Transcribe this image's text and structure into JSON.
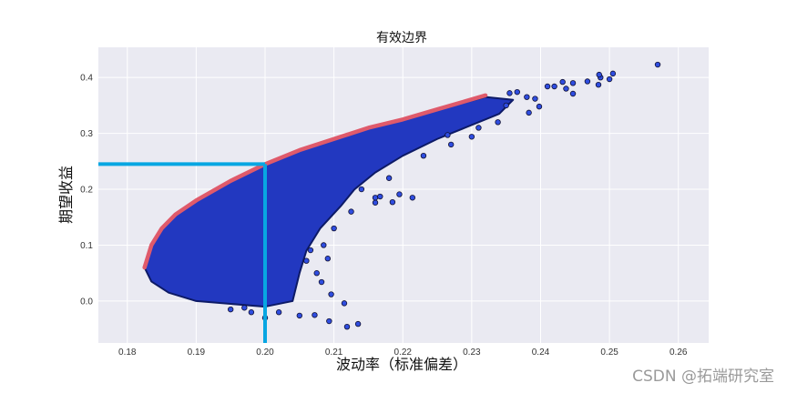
{
  "chart_data": {
    "type": "scatter",
    "title": "有效边界",
    "xlabel": "波动率（标准偏差）",
    "ylabel": "期望收益",
    "xlim": [
      0.1758,
      0.2644
    ],
    "ylim": [
      -0.075,
      0.454
    ],
    "xticks": [
      "0.18",
      "0.19",
      "0.20",
      "0.21",
      "0.22",
      "0.23",
      "0.24",
      "0.25",
      "0.26"
    ],
    "yticks": [
      "0.0",
      "0.1",
      "0.2",
      "0.3",
      "0.4"
    ],
    "grid": true,
    "colors": {
      "background": "#eaeaf2",
      "points": "#2f4de0",
      "point_edge": "#111133",
      "dense": "#2238c0",
      "frontier": "#df5a6b",
      "guide": "#08a6e2"
    },
    "dense_region": [
      [
        0.1825,
        0.06
      ],
      [
        0.1835,
        0.1
      ],
      [
        0.185,
        0.13
      ],
      [
        0.187,
        0.155
      ],
      [
        0.19,
        0.18
      ],
      [
        0.195,
        0.215
      ],
      [
        0.2,
        0.245
      ],
      [
        0.205,
        0.27
      ],
      [
        0.21,
        0.29
      ],
      [
        0.215,
        0.31
      ],
      [
        0.22,
        0.325
      ],
      [
        0.225,
        0.343
      ],
      [
        0.232,
        0.365
      ],
      [
        0.236,
        0.36
      ],
      [
        0.234,
        0.335
      ],
      [
        0.229,
        0.31
      ],
      [
        0.225,
        0.29
      ],
      [
        0.22,
        0.26
      ],
      [
        0.216,
        0.23
      ],
      [
        0.213,
        0.2
      ],
      [
        0.211,
        0.17
      ],
      [
        0.208,
        0.13
      ],
      [
        0.206,
        0.09
      ],
      [
        0.205,
        0.05
      ],
      [
        0.204,
        0.0
      ],
      [
        0.2,
        -0.01
      ],
      [
        0.195,
        -0.005
      ],
      [
        0.19,
        0.0
      ],
      [
        0.186,
        0.015
      ],
      [
        0.1835,
        0.035
      ]
    ],
    "points": [
      [
        0.257,
        0.423
      ],
      [
        0.2505,
        0.407
      ],
      [
        0.25,
        0.397
      ],
      [
        0.2484,
        0.387
      ],
      [
        0.2487,
        0.4
      ],
      [
        0.2485,
        0.405
      ],
      [
        0.2468,
        0.393
      ],
      [
        0.2447,
        0.39
      ],
      [
        0.2447,
        0.371
      ],
      [
        0.2437,
        0.38
      ],
      [
        0.2432,
        0.392
      ],
      [
        0.242,
        0.384
      ],
      [
        0.241,
        0.384
      ],
      [
        0.2398,
        0.348
      ],
      [
        0.2383,
        0.337
      ],
      [
        0.2392,
        0.362
      ],
      [
        0.2366,
        0.374
      ],
      [
        0.2338,
        0.32
      ],
      [
        0.23,
        0.294
      ],
      [
        0.2265,
        0.297
      ],
      [
        0.2214,
        0.185
      ],
      [
        0.2195,
        0.191
      ],
      [
        0.2185,
        0.177
      ],
      [
        0.216,
        0.176
      ],
      [
        0.216,
        0.185
      ],
      [
        0.2167,
        0.187
      ],
      [
        0.2091,
        0.076
      ],
      [
        0.2082,
        0.034
      ],
      [
        0.2096,
        0.012
      ],
      [
        0.2093,
        -0.036
      ],
      [
        0.2119,
        -0.046
      ],
      [
        0.2135,
        -0.041
      ],
      [
        0.2115,
        -0.004
      ],
      [
        0.205,
        -0.026
      ],
      [
        0.2072,
        -0.025
      ],
      [
        0.2066,
        0.091
      ],
      [
        0.206,
        0.072
      ],
      [
        0.198,
        -0.02
      ],
      [
        0.195,
        -0.015
      ],
      [
        0.2,
        -0.03
      ],
      [
        0.202,
        -0.02
      ],
      [
        0.197,
        -0.012
      ],
      [
        0.2075,
        0.05
      ],
      [
        0.2085,
        0.1
      ],
      [
        0.21,
        0.13
      ],
      [
        0.2125,
        0.16
      ],
      [
        0.214,
        0.2
      ],
      [
        0.218,
        0.22
      ],
      [
        0.223,
        0.26
      ],
      [
        0.227,
        0.28
      ],
      [
        0.231,
        0.31
      ],
      [
        0.235,
        0.35
      ],
      [
        0.238,
        0.365
      ],
      [
        0.2355,
        0.372
      ]
    ],
    "frontier": [
      [
        0.1825,
        0.06
      ],
      [
        0.1835,
        0.1
      ],
      [
        0.185,
        0.13
      ],
      [
        0.187,
        0.155
      ],
      [
        0.19,
        0.18
      ],
      [
        0.195,
        0.215
      ],
      [
        0.2,
        0.245
      ],
      [
        0.205,
        0.27
      ],
      [
        0.21,
        0.29
      ],
      [
        0.215,
        0.31
      ],
      [
        0.22,
        0.325
      ],
      [
        0.225,
        0.343
      ],
      [
        0.232,
        0.368
      ]
    ],
    "guides": {
      "x": 0.2,
      "y": 0.245
    }
  },
  "watermark": "CSDN @拓端研究室"
}
